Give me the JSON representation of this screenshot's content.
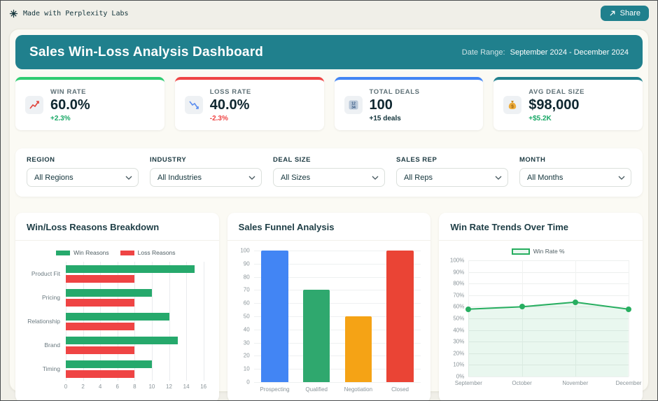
{
  "topbar": {
    "brand": "Made with Perplexity Labs",
    "share_label": "Share"
  },
  "header": {
    "title": "Sales Win-Loss Analysis Dashboard",
    "date_range_label": "Date Range:",
    "date_range_value": "September 2024 - December 2024",
    "banner_color": "#20808d"
  },
  "kpis": [
    {
      "label": "WIN RATE",
      "value": "60.0%",
      "trend": "+2.3%",
      "trend_color": "#18a866",
      "accent": "#2ecc71",
      "icon": "chart-increasing-icon"
    },
    {
      "label": "LOSS RATE",
      "value": "40.0%",
      "trend": "-2.3%",
      "trend_color": "#ef4444",
      "accent": "#ef4444",
      "icon": "chart-decreasing-icon"
    },
    {
      "label": "TOTAL DEALS",
      "value": "100",
      "trend": "+15 deals",
      "trend_color": "#13343b",
      "accent": "#4285f4",
      "icon": "input-numbers-icon"
    },
    {
      "label": "AVG DEAL SIZE",
      "value": "$98,000",
      "trend": "+$5.2K",
      "trend_color": "#18a866",
      "accent": "#20808d",
      "icon": "money-bag-icon"
    }
  ],
  "filters": [
    {
      "label": "REGION",
      "value": "All Regions"
    },
    {
      "label": "INDUSTRY",
      "value": "All Industries"
    },
    {
      "label": "DEAL SIZE",
      "value": "All Sizes"
    },
    {
      "label": "SALES REP",
      "value": "All Reps"
    },
    {
      "label": "MONTH",
      "value": "All Months"
    }
  ],
  "chart_data": [
    {
      "type": "bar",
      "orientation": "horizontal",
      "title": "Win/Loss Reasons Breakdown",
      "categories": [
        "Product Fit",
        "Pricing",
        "Relationship",
        "Brand",
        "Timing"
      ],
      "series": [
        {
          "name": "Win Reasons",
          "color": "#26a96c",
          "values": [
            15,
            10,
            12,
            13,
            10
          ]
        },
        {
          "name": "Loss Reasons",
          "color": "#ef4444",
          "values": [
            8,
            8,
            8,
            8,
            8
          ]
        }
      ],
      "xlim": [
        0,
        16
      ],
      "xticks": [
        0,
        2,
        4,
        6,
        8,
        10,
        12,
        14,
        16
      ],
      "grid": true,
      "legend_position": "top",
      "xlabel": "",
      "ylabel": ""
    },
    {
      "type": "bar",
      "orientation": "vertical",
      "title": "Sales Funnel Analysis",
      "categories": [
        "Prospecting",
        "Qualified",
        "Negotiation",
        "Closed"
      ],
      "values": [
        100,
        70,
        50,
        100
      ],
      "colors": [
        "#4285f4",
        "#2fa86e",
        "#f5a315",
        "#ea4435"
      ],
      "ylim": [
        0,
        100
      ],
      "yticks": [
        0,
        10,
        20,
        30,
        40,
        50,
        60,
        70,
        80,
        90,
        100
      ],
      "grid": true,
      "legend_position": "none",
      "xlabel": "",
      "ylabel": ""
    },
    {
      "type": "line",
      "title": "Win Rate Trends Over Time",
      "x": [
        "September",
        "October",
        "November",
        "December"
      ],
      "series": [
        {
          "name": "Win Rate %",
          "color": "#27ae60",
          "values": [
            58,
            60,
            64,
            58
          ]
        }
      ],
      "ylim": [
        0,
        100
      ],
      "yticks": [
        0,
        10,
        20,
        30,
        40,
        50,
        60,
        70,
        80,
        90,
        100
      ],
      "ytick_suffix": "%",
      "area_fill": true,
      "grid": true,
      "legend_position": "top",
      "xlabel": "",
      "ylabel": ""
    }
  ]
}
